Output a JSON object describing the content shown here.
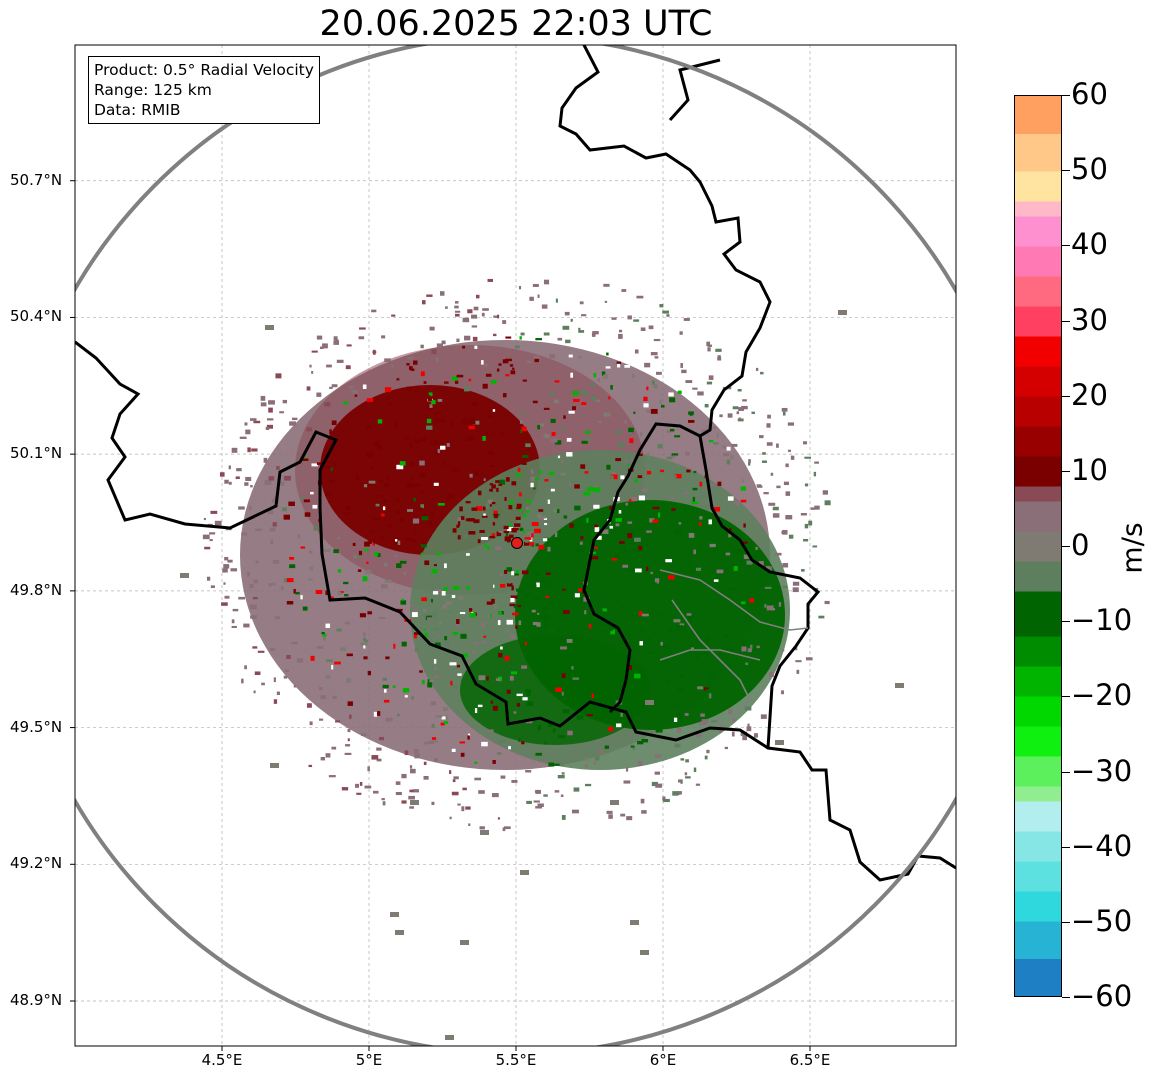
{
  "title": "20.06.2025 22:03 UTC",
  "info_box": {
    "line1": "Product: 0.5° Radial Velocity",
    "line2": "Range: 125 km",
    "line3": "Data: RMIB"
  },
  "map": {
    "lon_range": [
      4.0,
      7.0
    ],
    "lat_range": [
      48.8,
      51.0
    ],
    "radar_site": {
      "lon": 5.505,
      "lat": 49.914
    },
    "range_km": 125,
    "gridlines": true,
    "lat_ticks": [
      {
        "value": 48.9,
        "label": "48.9°N"
      },
      {
        "value": 49.2,
        "label": "49.2°N"
      },
      {
        "value": 49.5,
        "label": "49.5°N"
      },
      {
        "value": 49.8,
        "label": "49.8°N"
      },
      {
        "value": 50.1,
        "label": "50.1°N"
      },
      {
        "value": 50.4,
        "label": "50.4°N"
      },
      {
        "value": 50.7,
        "label": "50.7°N"
      }
    ],
    "lon_ticks": [
      {
        "value": 4.5,
        "label": "4.5°E"
      },
      {
        "value": 5.0,
        "label": "5°E"
      },
      {
        "value": 5.5,
        "label": "5.5°E"
      },
      {
        "value": 6.0,
        "label": "6°E"
      },
      {
        "value": 6.5,
        "label": "6.5°E"
      }
    ],
    "colors": {
      "border": "#000000",
      "range_ring": "#808080",
      "grid": "#b0b0b0",
      "radar_marker": "#e0201c",
      "inbound_strong": "#006400",
      "outbound_strong": "#7a0000",
      "near_zero_neg": "#5e7f5e",
      "near_zero_pos": "#8a6e78"
    }
  },
  "colorbar": {
    "unit": "m/s",
    "min": -60,
    "max": 60,
    "ticks": [
      {
        "value": 60,
        "label": "60"
      },
      {
        "value": 50,
        "label": "50"
      },
      {
        "value": 40,
        "label": "40"
      },
      {
        "value": 30,
        "label": "30"
      },
      {
        "value": 20,
        "label": "20"
      },
      {
        "value": 10,
        "label": "10"
      },
      {
        "value": 0,
        "label": "0"
      },
      {
        "value": -10,
        "label": "−10"
      },
      {
        "value": -20,
        "label": "−20"
      },
      {
        "value": -30,
        "label": "−30"
      },
      {
        "value": -40,
        "label": "−40"
      },
      {
        "value": -50,
        "label": "−50"
      },
      {
        "value": -60,
        "label": "−60"
      }
    ],
    "stops": [
      {
        "from": -60,
        "to": -55,
        "color": "#1f7fc4"
      },
      {
        "from": -55,
        "to": -50,
        "color": "#27b4d4"
      },
      {
        "from": -50,
        "to": -46,
        "color": "#2fd8dc"
      },
      {
        "from": -46,
        "to": -42,
        "color": "#5de0e0"
      },
      {
        "from": -42,
        "to": -38,
        "color": "#86e6e6"
      },
      {
        "from": -38,
        "to": -34,
        "color": "#b2eeee"
      },
      {
        "from": -34,
        "to": -32,
        "color": "#90ee90"
      },
      {
        "from": -32,
        "to": -28,
        "color": "#5cf05c"
      },
      {
        "from": -28,
        "to": -24,
        "color": "#10f010"
      },
      {
        "from": -24,
        "to": -20,
        "color": "#00d800"
      },
      {
        "from": -20,
        "to": -16,
        "color": "#00b400"
      },
      {
        "from": -16,
        "to": -12,
        "color": "#008c00"
      },
      {
        "from": -12,
        "to": -6,
        "color": "#006400"
      },
      {
        "from": -6,
        "to": -2,
        "color": "#5e7f5e"
      },
      {
        "from": -2,
        "to": 2,
        "color": "#7f7a72"
      },
      {
        "from": 2,
        "to": 6,
        "color": "#8a6e78"
      },
      {
        "from": 6,
        "to": 8,
        "color": "#8a4a55"
      },
      {
        "from": 8,
        "to": 12,
        "color": "#7a0000"
      },
      {
        "from": 12,
        "to": 16,
        "color": "#980000"
      },
      {
        "from": 16,
        "to": 20,
        "color": "#b80000"
      },
      {
        "from": 20,
        "to": 24,
        "color": "#d40000"
      },
      {
        "from": 24,
        "to": 28,
        "color": "#f20000"
      },
      {
        "from": 28,
        "to": 32,
        "color": "#ff4060"
      },
      {
        "from": 32,
        "to": 36,
        "color": "#ff6a80"
      },
      {
        "from": 36,
        "to": 40,
        "color": "#ff7ab4"
      },
      {
        "from": 40,
        "to": 44,
        "color": "#ff90d0"
      },
      {
        "from": 44,
        "to": 46,
        "color": "#ffb8c8"
      },
      {
        "from": 46,
        "to": 50,
        "color": "#ffe3a0"
      },
      {
        "from": 50,
        "to": 55,
        "color": "#ffc888"
      },
      {
        "from": 55,
        "to": 60,
        "color": "#ffa060"
      }
    ]
  }
}
